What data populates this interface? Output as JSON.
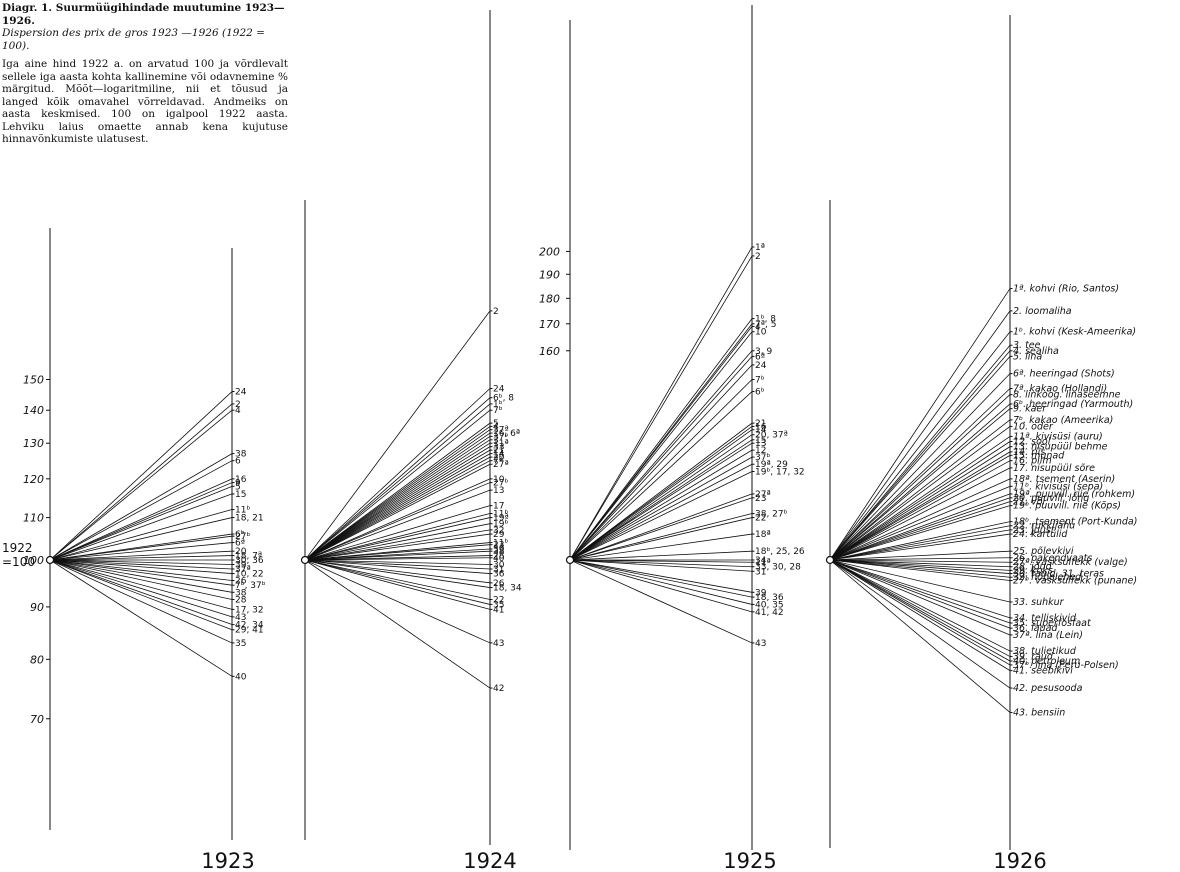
{
  "title_block": {
    "title": "Diagr. 1. Suurmüügihindade muutumine 1923—1926.",
    "subtitle": "Dispersion des prix de gros 1923 —1926 (1922 = 100).",
    "description": "Iga aine hind 1922 a. on arvatud 100 ja võrdlevalt sellele iga aasta kohta kallinemine või odavnemine % märgitud. Mõõt—logaritmiline, nii et tõusud ja langed kõik omavahel võrreldavad. Andmeiks on aasta keskmised. 100 on igalpool 1922 aasta. Lehviku laius omaette annab kena kujutuse hinnavõnkumiste ulatusest."
  },
  "chart_data": {
    "type": "line",
    "scale": "log",
    "base_label": "1922 =100",
    "line_color": "#111111",
    "y_ticks": [
      {
        "label": "150",
        "value": 150
      },
      {
        "label": "140",
        "value": 140
      },
      {
        "label": "130",
        "value": 130
      },
      {
        "label": "120",
        "value": 120
      },
      {
        "label": "110",
        "value": 110
      },
      {
        "label": "100",
        "value": 100
      },
      {
        "label": "90",
        "value": 90
      },
      {
        "label": "80",
        "value": 80
      },
      {
        "label": "70",
        "value": 70
      }
    ],
    "y_ticks_1925": [
      {
        "label": "200",
        "value": 200
      },
      {
        "label": "190",
        "value": 190
      },
      {
        "label": "180",
        "value": 180
      },
      {
        "label": "170",
        "value": 170
      },
      {
        "label": "160",
        "value": 160
      }
    ],
    "panels": [
      {
        "year": "1923",
        "points": [
          {
            "label": "24",
            "value": 146
          },
          {
            "label": "2",
            "value": 142
          },
          {
            "label": "4",
            "value": 140
          },
          {
            "label": "38",
            "value": 127
          },
          {
            "label": "6",
            "value": 125
          },
          {
            "label": "16",
            "value": 120
          },
          {
            "label": "9",
            "value": 119
          },
          {
            "label": "5",
            "value": 118
          },
          {
            "label": "15",
            "value": 116
          },
          {
            "label": "11ᵇ",
            "value": 112
          },
          {
            "label": "18, 21",
            "value": 110
          },
          {
            "label": "6ᵇ",
            "value": 106
          },
          {
            "label": "27ᵇ",
            "value": 105.5
          },
          {
            "label": "6ª",
            "value": 104
          },
          {
            "label": "20",
            "value": 102
          },
          {
            "label": "18, 7ª",
            "value": 101
          },
          {
            "label": "30, 36",
            "value": 100
          },
          {
            "label": "39",
            "value": 99
          },
          {
            "label": "37ª",
            "value": 98
          },
          {
            "label": "10, 22",
            "value": 97
          },
          {
            "label": "26",
            "value": 95.5
          },
          {
            "label": "7ᵇ, 37ᵇ",
            "value": 94.5
          },
          {
            "label": "38",
            "value": 93
          },
          {
            "label": "28",
            "value": 91.5
          },
          {
            "label": "17, 32",
            "value": 89.5
          },
          {
            "label": "43",
            "value": 88
          },
          {
            "label": "42, 34",
            "value": 86.5
          },
          {
            "label": "29, 41",
            "value": 85.5
          },
          {
            "label": "35",
            "value": 83
          },
          {
            "label": "40",
            "value": 77
          }
        ]
      },
      {
        "year": "1924",
        "points": [
          {
            "label": "2",
            "value": 175
          },
          {
            "label": "24",
            "value": 147
          },
          {
            "label": "6ᵇ, 8",
            "value": 144
          },
          {
            "label": "1ᵇ",
            "value": 142
          },
          {
            "label": "7ᵇ",
            "value": 140
          },
          {
            "label": "5",
            "value": 136
          },
          {
            "label": "4",
            "value": 135
          },
          {
            "label": "37ª",
            "value": 134
          },
          {
            "label": "16, 6ª",
            "value": 133
          },
          {
            "label": "37ᵇ",
            "value": 132
          },
          {
            "label": "3",
            "value": 131
          },
          {
            "label": "11ª",
            "value": 130
          },
          {
            "label": "33",
            "value": 129
          },
          {
            "label": "21",
            "value": 128
          },
          {
            "label": "14",
            "value": 127
          },
          {
            "label": "20",
            "value": 126
          },
          {
            "label": "7ª",
            "value": 125
          },
          {
            "label": "27ª",
            "value": 124
          },
          {
            "label": "10",
            "value": 120
          },
          {
            "label": "27ᵇ",
            "value": 119
          },
          {
            "label": "13",
            "value": 117
          },
          {
            "label": "17",
            "value": 113
          },
          {
            "label": "11ᵇ",
            "value": 111
          },
          {
            "label": "19ª",
            "value": 110
          },
          {
            "label": "19ᵇ",
            "value": 108.5
          },
          {
            "label": "32",
            "value": 107
          },
          {
            "label": "29",
            "value": 106
          },
          {
            "label": "11ᵇ",
            "value": 104
          },
          {
            "label": "23",
            "value": 103.5
          },
          {
            "label": "39",
            "value": 102.5
          },
          {
            "label": "38",
            "value": 102
          },
          {
            "label": "28",
            "value": 101
          },
          {
            "label": "40",
            "value": 100.5
          },
          {
            "label": "30",
            "value": 99
          },
          {
            "label": "31",
            "value": 98
          },
          {
            "label": "36",
            "value": 97
          },
          {
            "label": "26",
            "value": 95
          },
          {
            "label": "18, 34",
            "value": 94
          },
          {
            "label": "22",
            "value": 91.5
          },
          {
            "label": "35",
            "value": 90.5
          },
          {
            "label": "41",
            "value": 89.5
          },
          {
            "label": "43",
            "value": 83
          },
          {
            "label": "42",
            "value": 75
          }
        ]
      },
      {
        "year": "1925",
        "points": [
          {
            "label": "1ª",
            "value": 202
          },
          {
            "label": "2",
            "value": 198
          },
          {
            "label": "1ᵇ, 8",
            "value": 172
          },
          {
            "label": "7ª, 5",
            "value": 170
          },
          {
            "label": "4",
            "value": 169
          },
          {
            "label": "10",
            "value": 167
          },
          {
            "label": "3, 9",
            "value": 160
          },
          {
            "label": "6ª",
            "value": 158
          },
          {
            "label": "24",
            "value": 155
          },
          {
            "label": "7ᵇ",
            "value": 150
          },
          {
            "label": "6ᵇ",
            "value": 146
          },
          {
            "label": "21",
            "value": 136
          },
          {
            "label": "16",
            "value": 135
          },
          {
            "label": "14",
            "value": 134
          },
          {
            "label": "20, 37ª",
            "value": 132.5
          },
          {
            "label": "15",
            "value": 131
          },
          {
            "label": "13",
            "value": 130
          },
          {
            "label": "12",
            "value": 128
          },
          {
            "label": "37ᵇ",
            "value": 126
          },
          {
            "label": "19ª, 29",
            "value": 124
          },
          {
            "label": "19ᵇ, 17, 32",
            "value": 122
          },
          {
            "label": "27ª",
            "value": 116
          },
          {
            "label": "23",
            "value": 115
          },
          {
            "label": "38, 27ᵇ",
            "value": 111
          },
          {
            "label": "22",
            "value": 110
          },
          {
            "label": "18ª",
            "value": 106
          },
          {
            "label": "18ᵇ, 25, 26",
            "value": 102
          },
          {
            "label": "34",
            "value": 100
          },
          {
            "label": "11ª",
            "value": 99.5
          },
          {
            "label": "33, 30, 28",
            "value": 98.5
          },
          {
            "label": "31",
            "value": 97.5
          },
          {
            "label": "39",
            "value": 93
          },
          {
            "label": "18, 36",
            "value": 92
          },
          {
            "label": "40, 35",
            "value": 90.5
          },
          {
            "label": "41, 42",
            "value": 89
          },
          {
            "label": "43",
            "value": 83
          }
        ]
      },
      {
        "year": "1926",
        "points": [
          {
            "label": "1ª. kohvi (Rio, Santos)",
            "value": 184
          },
          {
            "label": "2. loomaliha",
            "value": 175
          },
          {
            "label": "1ᵇ. kohvi (Kesk-Ameerika)",
            "value": 167
          },
          {
            "label": "3. tee",
            "value": 162
          },
          {
            "label": "4. sealiha",
            "value": 160
          },
          {
            "label": "5. lina",
            "value": 158
          },
          {
            "label": "6ª. heeringad (Shots)",
            "value": 152
          },
          {
            "label": "7ª. kakao (Hollandi)",
            "value": 147
          },
          {
            "label": "8. linkoog. linaseemne",
            "value": 145
          },
          {
            "label": "6ᵇ. heeringad (Yarmouth)",
            "value": 142
          },
          {
            "label": "9. kaer",
            "value": 140.5
          },
          {
            "label": "7ᵇ. kakao (Ameerika)",
            "value": 137
          },
          {
            "label": "10. oder",
            "value": 135
          },
          {
            "label": "11ª. kivisüsi (auru)",
            "value": 132
          },
          {
            "label": "12. sool",
            "value": 130.5
          },
          {
            "label": "13. nisupüül behme",
            "value": 129
          },
          {
            "label": "14. riis",
            "value": 127.5
          },
          {
            "label": "15. munad",
            "value": 126.5
          },
          {
            "label": "16. piim",
            "value": 125
          },
          {
            "label": "17. nisupüül sõre",
            "value": 123
          },
          {
            "label": "18ª. tsement (Aserin)",
            "value": 120
          },
          {
            "label": "11ᵇ. kivisüsi (sepa)",
            "value": 118
          },
          {
            "label": "19ª. puuvill. riie (rohkem)",
            "value": 116
          },
          {
            "label": "20. puuvill. lõng",
            "value": 115
          },
          {
            "label": "21. või",
            "value": 114
          },
          {
            "label": "19ᵇ. puuvill. riie (Kõps)",
            "value": 113
          },
          {
            "label": "18ᵇ. tsement (Port-Kunda)",
            "value": 109
          },
          {
            "label": "22. rukkijahu",
            "value": 108
          },
          {
            "label": "23. juust",
            "value": 107
          },
          {
            "label": "24. kartulid",
            "value": 106
          },
          {
            "label": "25. põlevkivi",
            "value": 102
          },
          {
            "label": "26. pakendvaats",
            "value": 100.5
          },
          {
            "label": "27ª. vasksulfekk (valge)",
            "value": 99.5
          },
          {
            "label": "28. jõud",
            "value": 98.5
          },
          {
            "label": "29. koks",
            "value": 97.7
          },
          {
            "label": "30. rauid, 31. teras",
            "value": 97
          },
          {
            "label": "32. hõbelehed",
            "value": 96.2
          },
          {
            "label": "27ᵇ. vasksulfekk (punane)",
            "value": 95.5
          },
          {
            "label": "33. suhkur",
            "value": 91
          },
          {
            "label": "34. telliskivid",
            "value": 87.8
          },
          {
            "label": "35. superfosfaat",
            "value": 86.8
          },
          {
            "label": "36. lauad",
            "value": 85.8
          },
          {
            "label": "37ª. lina (Lein)",
            "value": 84.5
          },
          {
            "label": "38. tulietikud",
            "value": 81.5
          },
          {
            "label": "39. raud",
            "value": 80.5
          },
          {
            "label": "40. petroleum",
            "value": 79.7
          },
          {
            "label": "37ᵇ. lina (Peru-Polsen)",
            "value": 79
          },
          {
            "label": "41. seebikivi",
            "value": 78
          },
          {
            "label": "42. pesusooda",
            "value": 75
          },
          {
            "label": "43. bensiin",
            "value": 71
          }
        ]
      }
    ]
  }
}
